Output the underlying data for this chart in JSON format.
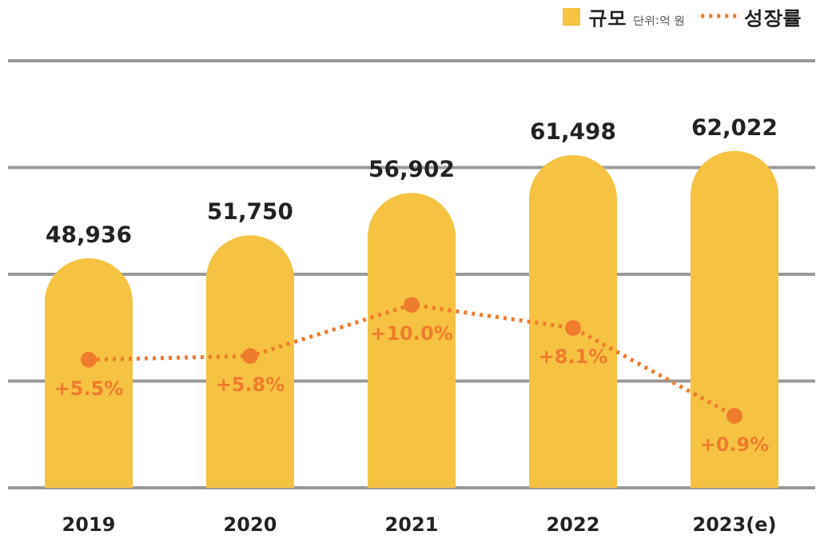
{
  "chart_data": {
    "type": "bar",
    "categories": [
      "2019",
      "2020",
      "2021",
      "2022",
      "2023(e)"
    ],
    "series": [
      {
        "name": "규모",
        "color": "#f5c242",
        "values": [
          48936,
          51750,
          56902,
          61498,
          62022
        ],
        "value_labels": [
          "48,936",
          "51,750",
          "56,902",
          "61,498",
          "62,022"
        ]
      },
      {
        "name": "성장률",
        "type": "line",
        "axis": "y2",
        "color": "#ef7b2d",
        "line_style": "dotted",
        "marker": "circle",
        "values": [
          5.5,
          5.8,
          10.0,
          8.1,
          0.9
        ],
        "value_labels": [
          "+5.5%",
          "+5.8%",
          "+10.0%",
          "+8.1%",
          "+0.9%"
        ]
      }
    ],
    "ylim": [
      21000,
      73000
    ],
    "yticks": [
      {
        "value": 21000,
        "label": null
      },
      {
        "value": 34000,
        "label": null
      },
      {
        "value": 47000,
        "label": null
      },
      {
        "value": 60000,
        "label": null
      },
      {
        "value": 73000,
        "label": null
      }
    ],
    "y2lim": [
      -5,
      30
    ],
    "grid": "y",
    "legend": "top right",
    "tick_labels": "x",
    "annotations": [
      "단위:억 원"
    ]
  }
}
